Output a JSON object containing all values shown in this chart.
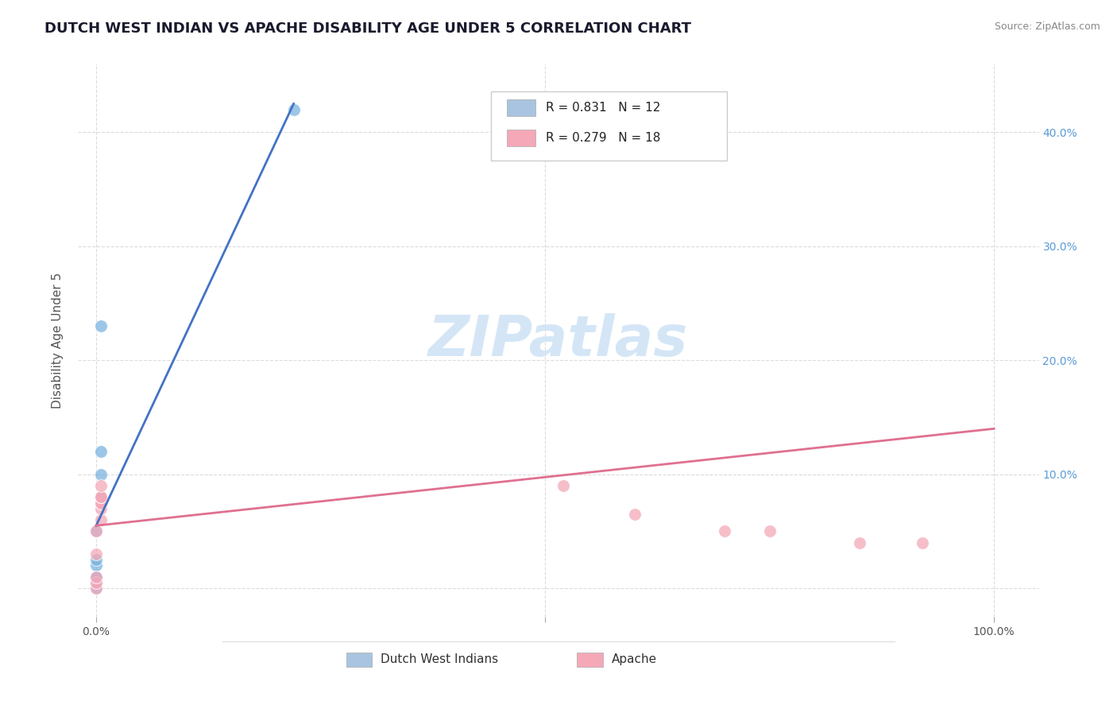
{
  "title": "DUTCH WEST INDIAN VS APACHE DISABILITY AGE UNDER 5 CORRELATION CHART",
  "source": "Source: ZipAtlas.com",
  "ylabel": "Disability Age Under 5",
  "blue_scatter_x": [
    0.0,
    0.0,
    0.0,
    0.0,
    0.0,
    0.0,
    0.0,
    0.005,
    0.005,
    0.005,
    0.005,
    0.22
  ],
  "blue_scatter_y": [
    0.0,
    0.005,
    0.01,
    0.01,
    0.02,
    0.025,
    0.05,
    0.08,
    0.1,
    0.12,
    0.23,
    0.42
  ],
  "pink_scatter_x": [
    0.0,
    0.0,
    0.0,
    0.0,
    0.0,
    0.005,
    0.005,
    0.005,
    0.005,
    0.005,
    0.005,
    0.005,
    0.52,
    0.6,
    0.7,
    0.75,
    0.85,
    0.92
  ],
  "pink_scatter_y": [
    0.0,
    0.005,
    0.01,
    0.03,
    0.05,
    0.06,
    0.07,
    0.075,
    0.075,
    0.08,
    0.08,
    0.09,
    0.09,
    0.065,
    0.05,
    0.05,
    0.04,
    0.04
  ],
  "blue_line_x": [
    0.0,
    0.22
  ],
  "blue_line_y": [
    0.055,
    0.425
  ],
  "pink_line_x": [
    0.0,
    1.0
  ],
  "pink_line_y": [
    0.055,
    0.14
  ],
  "blue_scatter_color": "#7ab3e0",
  "pink_scatter_color": "#f4a8b8",
  "blue_line_color": "#4472c4",
  "pink_line_color": "#e07090",
  "background_color": "#ffffff",
  "grid_color": "#cccccc",
  "watermark_color": "#d0e4f5",
  "title_color": "#1a1a2e",
  "axis_label_color": "#5b9bd5",
  "legend_blue_marker": "#a8c4e0",
  "legend_pink_marker": "#f4a8b8",
  "r_blue": "0.831",
  "n_blue": "12",
  "r_pink": "0.279",
  "n_pink": "18",
  "bottom_legend_label1": "Dutch West Indians",
  "bottom_legend_label2": "Apache",
  "xlim": [
    -0.02,
    1.05
  ],
  "ylim": [
    -0.025,
    0.46
  ]
}
